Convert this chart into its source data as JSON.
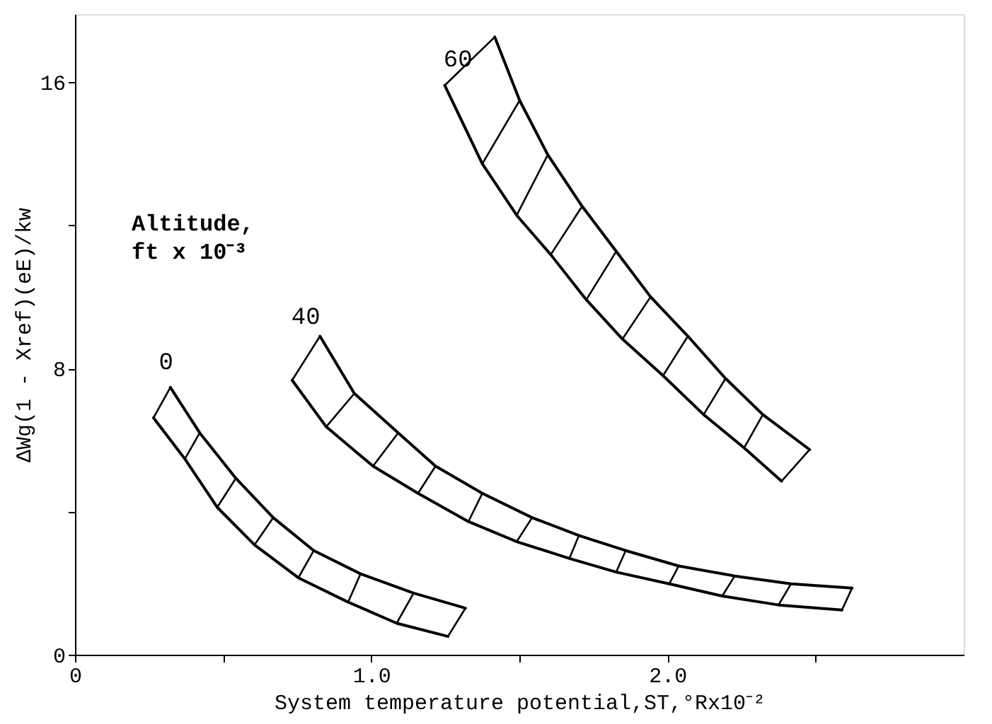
{
  "chart_data": {
    "type": "line",
    "xlabel": "System temperature potential,ST,°Rx10⁻²",
    "ylabel": "ΔWg(1 - Xref)(eE)/kw",
    "xlim": [
      0,
      3.0
    ],
    "ylim": [
      0,
      17.9
    ],
    "xticks": [
      0,
      {
        "value": 0.5,
        "label": null
      },
      {
        "value": 1,
        "label": "1.0"
      },
      {
        "value": 1.5,
        "label": null
      },
      {
        "value": 2,
        "label": "2.0"
      },
      {
        "value": 2.5,
        "label": null
      }
    ],
    "yticks": [
      0,
      {
        "value": 4,
        "label": null
      },
      8,
      {
        "value": 12,
        "label": null
      },
      16
    ],
    "grid": false,
    "legend": false,
    "marker": "none",
    "line_style": "solid",
    "series": [
      {
        "color": "#000000",
        "x": [
          0.265,
          0.371,
          0.48,
          0.606,
          0.754,
          0.922,
          1.086,
          1.259
        ],
        "values": [
          6.62,
          5.47,
          4.12,
          3.07,
          2.15,
          1.47,
          0.88,
          0.51
        ]
      },
      {
        "name": "0",
        "color": "#000000",
        "x": [
          0.322,
          0.421,
          0.543,
          0.669,
          0.806,
          0.964,
          1.143,
          1.318
        ],
        "values": [
          7.47,
          6.2,
          4.93,
          3.83,
          2.91,
          2.26,
          1.72,
          1.3
        ]
      },
      {
        "color": "#000000",
        "x": [
          0.733,
          0.848,
          1.006,
          1.158,
          1.328,
          1.491,
          1.669,
          1.827,
          2.006,
          2.185,
          2.375,
          2.589
        ],
        "values": [
          7.67,
          6.37,
          5.27,
          4.51,
          3.72,
          3.16,
          2.69,
          2.31,
          1.98,
          1.64,
          1.39,
          1.25
        ]
      },
      {
        "name": "40",
        "color": "#000000",
        "x": [
          0.827,
          0.943,
          1.091,
          1.217,
          1.375,
          1.543,
          1.701,
          1.859,
          2.038,
          2.227,
          2.417,
          2.623
        ],
        "values": [
          8.9,
          7.3,
          6.2,
          5.27,
          4.51,
          3.83,
          3.33,
          2.91,
          2.48,
          2.2,
          1.98,
          1.86
        ]
      },
      {
        "color": "#000000",
        "x": [
          1.248,
          1.375,
          1.491,
          1.606,
          1.726,
          1.848,
          1.985,
          2.122,
          2.259,
          2.385
        ],
        "values": [
          15.91,
          13.72,
          12.28,
          11.18,
          9.92,
          8.82,
          7.8,
          6.71,
          5.78,
          4.85
        ]
      },
      {
        "name": "60",
        "color": "#000000",
        "x": [
          1.417,
          1.501,
          1.596,
          1.712,
          1.827,
          1.943,
          2.069,
          2.196,
          2.322,
          2.48
        ],
        "values": [
          17.26,
          15.49,
          13.97,
          12.53,
          11.27,
          10.0,
          8.9,
          7.72,
          6.71,
          5.73
        ]
      },
      {
        "color": "#000000",
        "x": [
          0.265,
          0.322
        ],
        "values": [
          6.62,
          7.47
        ]
      },
      {
        "color": "#000000",
        "x": [
          0.371,
          0.421
        ],
        "values": [
          5.47,
          6.2
        ]
      },
      {
        "color": "#000000",
        "x": [
          0.48,
          0.543
        ],
        "values": [
          4.12,
          4.93
        ]
      },
      {
        "color": "#000000",
        "x": [
          0.606,
          0.669
        ],
        "values": [
          3.07,
          3.83
        ]
      },
      {
        "color": "#000000",
        "x": [
          0.754,
          0.806
        ],
        "values": [
          2.15,
          2.91
        ]
      },
      {
        "color": "#000000",
        "x": [
          0.922,
          0.964
        ],
        "values": [
          1.47,
          2.26
        ]
      },
      {
        "color": "#000000",
        "x": [
          1.086,
          1.143
        ],
        "values": [
          0.88,
          1.72
        ]
      },
      {
        "color": "#000000",
        "x": [
          1.259,
          1.318
        ],
        "values": [
          0.51,
          1.3
        ]
      },
      {
        "color": "#000000",
        "x": [
          0.733,
          0.827
        ],
        "values": [
          7.67,
          8.9
        ]
      },
      {
        "color": "#000000",
        "x": [
          0.848,
          0.943
        ],
        "values": [
          6.37,
          7.3
        ]
      },
      {
        "color": "#000000",
        "x": [
          1.006,
          1.091
        ],
        "values": [
          5.27,
          6.2
        ]
      },
      {
        "color": "#000000",
        "x": [
          1.158,
          1.217
        ],
        "values": [
          4.51,
          5.27
        ]
      },
      {
        "color": "#000000",
        "x": [
          1.328,
          1.375
        ],
        "values": [
          3.72,
          4.51
        ]
      },
      {
        "color": "#000000",
        "x": [
          1.491,
          1.543
        ],
        "values": [
          3.16,
          3.83
        ]
      },
      {
        "color": "#000000",
        "x": [
          1.669,
          1.701
        ],
        "values": [
          2.69,
          3.33
        ]
      },
      {
        "color": "#000000",
        "x": [
          1.827,
          1.859
        ],
        "values": [
          2.31,
          2.91
        ]
      },
      {
        "color": "#000000",
        "x": [
          2.006,
          2.038
        ],
        "values": [
          1.98,
          2.48
        ]
      },
      {
        "color": "#000000",
        "x": [
          2.185,
          2.227
        ],
        "values": [
          1.64,
          2.2
        ]
      },
      {
        "color": "#000000",
        "x": [
          2.375,
          2.417
        ],
        "values": [
          1.39,
          1.98
        ]
      },
      {
        "color": "#000000",
        "x": [
          2.589,
          2.623
        ],
        "values": [
          1.25,
          1.86
        ]
      },
      {
        "color": "#000000",
        "x": [
          1.248,
          1.417
        ],
        "values": [
          15.91,
          17.26
        ]
      },
      {
        "color": "#000000",
        "x": [
          1.375,
          1.501
        ],
        "values": [
          13.72,
          15.49
        ]
      },
      {
        "color": "#000000",
        "x": [
          1.491,
          1.596
        ],
        "values": [
          12.28,
          13.97
        ]
      },
      {
        "color": "#000000",
        "x": [
          1.606,
          1.712
        ],
        "values": [
          11.18,
          12.53
        ]
      },
      {
        "color": "#000000",
        "x": [
          1.726,
          1.827
        ],
        "values": [
          9.92,
          11.27
        ]
      },
      {
        "color": "#000000",
        "x": [
          1.848,
          1.943
        ],
        "values": [
          8.82,
          10.0
        ]
      },
      {
        "color": "#000000",
        "x": [
          1.985,
          2.069
        ],
        "values": [
          7.8,
          8.9
        ]
      },
      {
        "color": "#000000",
        "x": [
          2.122,
          2.196
        ],
        "values": [
          6.71,
          7.72
        ]
      },
      {
        "color": "#000000",
        "x": [
          2.259,
          2.322
        ],
        "values": [
          5.78,
          6.71
        ]
      },
      {
        "color": "#000000",
        "x": [
          2.385,
          2.48
        ],
        "values": [
          4.85,
          5.73
        ]
      }
    ],
    "annotations": [
      "Altitude,\nft x 10⁻³"
    ]
  }
}
